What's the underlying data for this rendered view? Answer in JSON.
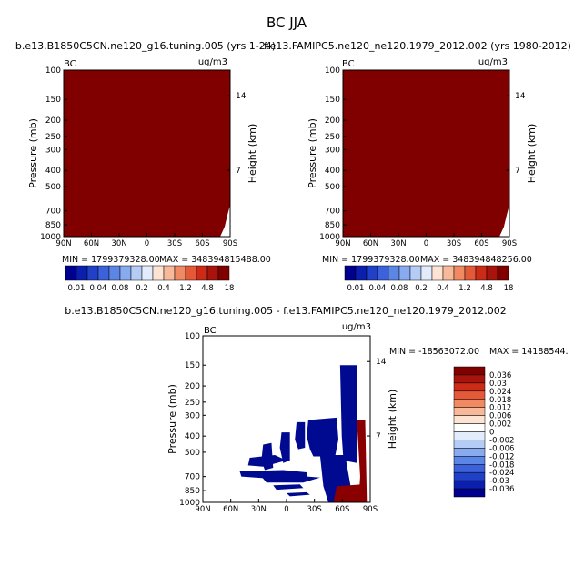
{
  "figure": {
    "title": "BC JJA"
  },
  "chart_data": [
    {
      "type": "heatmap",
      "title": "b.e13.B1850C5CN.ne120_g16.tuning.005 (yrs 1-24)",
      "left_label": "BC",
      "right_label": "ug/m3",
      "xlabel": "",
      "ylabel": "Pressure (mb)",
      "y2label": "Height (km)",
      "x_ticks": [
        "90N",
        "60N",
        "30N",
        "0",
        "30S",
        "60S",
        "90S"
      ],
      "y_ticks": [
        100,
        150,
        200,
        250,
        300,
        400,
        500,
        700,
        850,
        1000
      ],
      "y2_ticks": [
        14,
        7
      ],
      "ylim": [
        100,
        1000
      ],
      "log_y": true,
      "fill_color": "#800000",
      "min_text": "MIN = 1799379328.00",
      "max_text": "MAX = 348394815488.00",
      "colorbar": {
        "labels": [
          "0.01",
          "0.04",
          "0.08",
          "0.2",
          "0.4",
          "1.2",
          "4.8",
          "18"
        ],
        "colors": [
          "#00008f",
          "#0a1fb0",
          "#2040c8",
          "#3b62da",
          "#5c86e6",
          "#88aaef",
          "#b5cdf6",
          "#e2ecfb",
          "#fde3d2",
          "#f7b99a",
          "#f08a63",
          "#e45a38",
          "#cc2b18",
          "#a8130b",
          "#800000"
        ]
      }
    },
    {
      "type": "heatmap",
      "title": "f.e13.FAMIPC5.ne120_ne120.1979_2012.002 (yrs 1980-2012)",
      "left_label": "BC",
      "right_label": "ug/m3",
      "xlabel": "",
      "ylabel": "Pressure (mb)",
      "y2label": "Height (km)",
      "x_ticks": [
        "90N",
        "60N",
        "30N",
        "0",
        "30S",
        "60S",
        "90S"
      ],
      "y_ticks": [
        100,
        150,
        200,
        250,
        300,
        400,
        500,
        700,
        850,
        1000
      ],
      "y2_ticks": [
        14,
        7
      ],
      "ylim": [
        100,
        1000
      ],
      "log_y": true,
      "fill_color": "#800000",
      "min_text": "MIN = 1799379328.00",
      "max_text": "MAX = 348394848256.00",
      "colorbar": {
        "labels": [
          "0.01",
          "0.04",
          "0.08",
          "0.2",
          "0.4",
          "1.2",
          "4.8",
          "18"
        ],
        "colors": [
          "#00008f",
          "#0a1fb0",
          "#2040c8",
          "#3b62da",
          "#5c86e6",
          "#88aaef",
          "#b5cdf6",
          "#e2ecfb",
          "#fde3d2",
          "#f7b99a",
          "#f08a63",
          "#e45a38",
          "#cc2b18",
          "#a8130b",
          "#800000"
        ]
      }
    },
    {
      "type": "heatmap",
      "title": "b.e13.B1850C5CN.ne120_g16.tuning.005 - f.e13.FAMIPC5.ne120_ne120.1979_2012.002",
      "left_label": "BC",
      "right_label": "ug/m3",
      "xlabel": "",
      "ylabel": "Pressure (mb)",
      "y2label": "Height (km)",
      "x_ticks": [
        "90N",
        "60N",
        "30N",
        "0",
        "30S",
        "60S",
        "90S"
      ],
      "y_ticks": [
        100,
        150,
        200,
        250,
        300,
        400,
        500,
        700,
        850,
        1000
      ],
      "y2_ticks": [
        14,
        7
      ],
      "ylim": [
        100,
        1000
      ],
      "log_y": true,
      "min_text": "MIN = -18563072.00",
      "max_text": "MAX = 14188544.",
      "legend": {
        "labels": [
          "0.036",
          "0.03",
          "0.024",
          "0.018",
          "0.012",
          "0.006",
          "0.002",
          "0",
          "-0.002",
          "-0.006",
          "-0.012",
          "-0.018",
          "-0.024",
          "-0.03",
          "-0.036"
        ],
        "colors": [
          "#800000",
          "#a8130b",
          "#cc2b18",
          "#e45a38",
          "#f08a63",
          "#f7b99a",
          "#fde3d2",
          "#ffffff",
          "#e2ecfb",
          "#b5cdf6",
          "#88aaef",
          "#5c86e6",
          "#3b62da",
          "#2040c8",
          "#0a1fb0",
          "#00008f"
        ]
      }
    }
  ]
}
